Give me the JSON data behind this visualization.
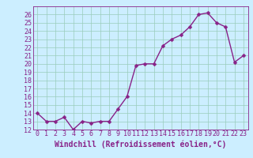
{
  "x": [
    0,
    1,
    2,
    3,
    4,
    5,
    6,
    7,
    8,
    9,
    10,
    11,
    12,
    13,
    14,
    15,
    16,
    17,
    18,
    19,
    20,
    21,
    22,
    23
  ],
  "y": [
    14,
    13,
    13,
    13.5,
    12,
    13,
    12.8,
    13,
    13,
    14.5,
    16,
    19.8,
    20,
    20,
    22.2,
    23,
    23.5,
    24.5,
    26,
    26.2,
    25,
    24.5,
    20.2,
    21
  ],
  "line_color": "#882288",
  "marker_color": "#882288",
  "bg_color": "#cceeff",
  "grid_color": "#99ccbb",
  "xlabel": "Windchill (Refroidissement éolien,°C)",
  "ylim": [
    12,
    27
  ],
  "xlim": [
    -0.5,
    23.5
  ],
  "yticks": [
    12,
    13,
    14,
    15,
    16,
    17,
    18,
    19,
    20,
    21,
    22,
    23,
    24,
    25,
    26
  ],
  "xticks": [
    0,
    1,
    2,
    3,
    4,
    5,
    6,
    7,
    8,
    9,
    10,
    11,
    12,
    13,
    14,
    15,
    16,
    17,
    18,
    19,
    20,
    21,
    22,
    23
  ],
  "xlabel_fontsize": 7,
  "tick_fontsize": 6,
  "line_width": 1.0,
  "marker_size": 2.5
}
